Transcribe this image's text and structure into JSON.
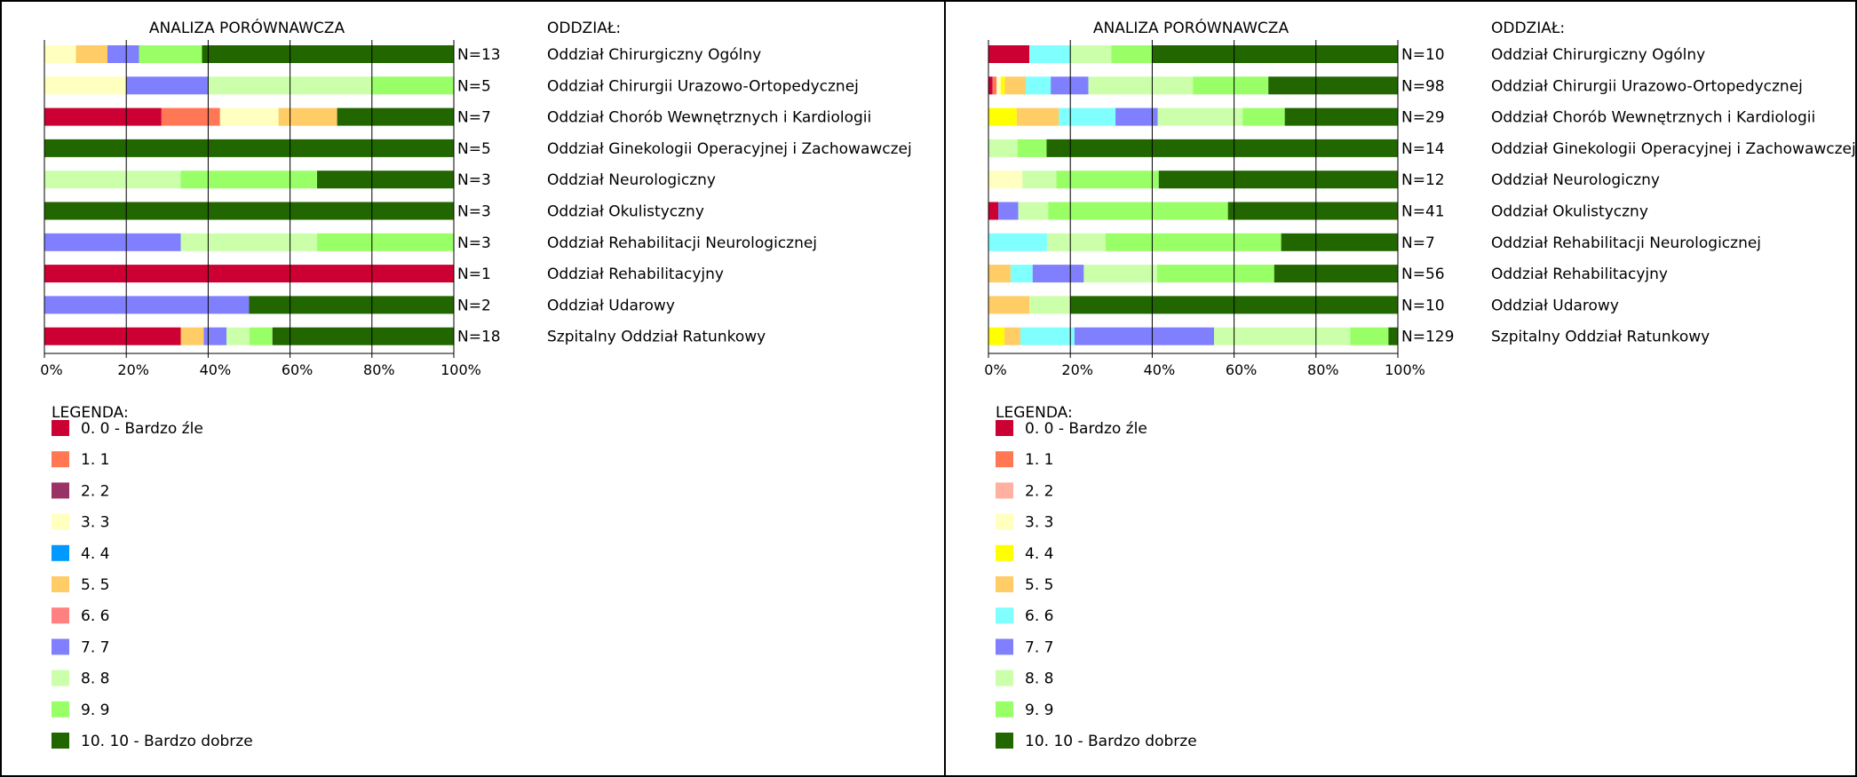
{
  "legend_title": "LEGENDA:",
  "col_header_title": "ANALIZA  PORÓWNAWCZA",
  "col_header_dept": "ODDZIAŁ:",
  "categories": [
    "0. 0 - Bardzo źle",
    "1. 1",
    "2. 2",
    "3. 3",
    "4. 4",
    "5. 5",
    "6. 6",
    "7. 7",
    "8. 8",
    "9. 9",
    "10. 10 - Bardzo dobrze"
  ],
  "chart_data": [
    {
      "type": "bar",
      "orientation": "horizontal",
      "stacked": "percent",
      "title": "ANALIZA  PORÓWNAWCZA",
      "xlim": [
        0,
        100
      ],
      "xticks": [
        "0%",
        "20%",
        "40%",
        "60%",
        "80%",
        "100%"
      ],
      "grid": true,
      "legend_position": "bottom-left",
      "colors": [
        "#cc0033",
        "#ff7755",
        "#993366",
        "#ffffc0",
        "#0099ff",
        "#ffcc66",
        "#ff8080",
        "#8080ff",
        "#ccffaa",
        "#99ff66",
        "#226600"
      ],
      "rows": [
        {
          "label": "Oddział Chirurgiczny Ogólny",
          "n": "N=13",
          "values": [
            0,
            0,
            0,
            7.7,
            0,
            7.7,
            0,
            7.7,
            0,
            15.4,
            61.5
          ]
        },
        {
          "label": "Oddział Chirurgii Urazowo-Ortopedycznej",
          "n": "N=5",
          "values": [
            0,
            0,
            0,
            20,
            0,
            0,
            0,
            20,
            40,
            20,
            0
          ]
        },
        {
          "label": "Oddział Chorób Wewnętrznych i Kardiologii",
          "n": "N=7",
          "values": [
            28.6,
            14.3,
            0,
            14.3,
            0,
            14.3,
            0,
            0,
            0,
            0,
            28.5
          ]
        },
        {
          "label": "Oddział Ginekologii Operacyjnej i Zachowawczej",
          "n": "N=5",
          "values": [
            0,
            0,
            0,
            0,
            0,
            0,
            0,
            0,
            0,
            0,
            100
          ]
        },
        {
          "label": "Oddział Neurologiczny",
          "n": "N=3",
          "values": [
            0,
            0,
            0,
            0,
            0,
            0,
            0,
            0,
            33.3,
            33.3,
            33.4
          ]
        },
        {
          "label": "Oddział Okulistyczny",
          "n": "N=3",
          "values": [
            0,
            0,
            0,
            0,
            0,
            0,
            0,
            0,
            0,
            0,
            100
          ]
        },
        {
          "label": "Oddział Rehabilitacji Neurologicznej",
          "n": "N=3",
          "values": [
            0,
            0,
            0,
            0,
            0,
            0,
            0,
            33.3,
            33.3,
            33.4,
            0
          ]
        },
        {
          "label": "Oddział Rehabilitacyjny",
          "n": "N=1",
          "values": [
            100,
            0,
            0,
            0,
            0,
            0,
            0,
            0,
            0,
            0,
            0
          ]
        },
        {
          "label": "Oddział Udarowy",
          "n": "N=2",
          "values": [
            0,
            0,
            0,
            0,
            0,
            0,
            0,
            50,
            0,
            0,
            50
          ]
        },
        {
          "label": "Szpitalny Oddział Ratunkowy",
          "n": "N=18",
          "values": [
            33.3,
            0,
            0,
            0,
            0,
            5.6,
            0,
            5.6,
            5.6,
            5.6,
            44.3
          ]
        }
      ]
    },
    {
      "type": "bar",
      "orientation": "horizontal",
      "stacked": "percent",
      "title": "ANALIZA  PORÓWNAWCZA",
      "xlim": [
        0,
        100
      ],
      "xticks": [
        "0%",
        "20%",
        "40%",
        "60%",
        "80%",
        "100%"
      ],
      "grid": true,
      "legend_position": "bottom-left",
      "colors": [
        "#cc0033",
        "#ff7755",
        "#ffb0a0",
        "#ffffc0",
        "#ffff00",
        "#ffcc66",
        "#80ffff",
        "#8080ff",
        "#ccffaa",
        "#99ff66",
        "#226600"
      ],
      "rows": [
        {
          "label": "Oddział Chirurgiczny Ogólny",
          "n": "N=10",
          "values": [
            10,
            0,
            0,
            0,
            0,
            0,
            10,
            0,
            10,
            10,
            60
          ]
        },
        {
          "label": "Oddział Chirurgii Urazowo-Ortopedycznej",
          "n": "N=98",
          "values": [
            1,
            1,
            0,
            1,
            1,
            5.1,
            6.1,
            9.2,
            25.5,
            18.4,
            31.6
          ]
        },
        {
          "label": "Oddział Chorób Wewnętrznych i Kardiologii",
          "n": "N=29",
          "values": [
            0,
            0,
            0,
            0,
            6.9,
            10.3,
            13.8,
            10.3,
            20.7,
            10.3,
            27.6
          ]
        },
        {
          "label": "Oddział Ginekologii Operacyjnej i Zachowawczej",
          "n": "N=14",
          "values": [
            0,
            0,
            0,
            0,
            0,
            0,
            0,
            0,
            7.1,
            7.1,
            85.8
          ]
        },
        {
          "label": "Oddział Neurologiczny",
          "n": "N=12",
          "values": [
            0,
            0,
            0,
            8.3,
            0,
            0,
            0,
            0,
            8.3,
            25,
            58.4
          ]
        },
        {
          "label": "Oddział Okulistyczny",
          "n": "N=41",
          "values": [
            2.4,
            0,
            0,
            0,
            0,
            0,
            0,
            4.9,
            7.3,
            43.9,
            41.5
          ]
        },
        {
          "label": "Oddział Rehabilitacji Neurologicznej",
          "n": "N=7",
          "values": [
            0,
            0,
            0,
            0,
            0,
            0,
            14.3,
            0,
            14.3,
            42.9,
            28.5
          ]
        },
        {
          "label": "Oddział Rehabilitacyjny",
          "n": "N=56",
          "values": [
            0,
            0,
            0,
            0,
            0,
            5.4,
            5.4,
            12.5,
            17.9,
            28.6,
            30.2
          ]
        },
        {
          "label": "Oddział Udarowy",
          "n": "N=10",
          "values": [
            0,
            0,
            0,
            0,
            0,
            10,
            0,
            0,
            10,
            0,
            80
          ]
        },
        {
          "label": "Szpitalny Oddział Ratunkowy",
          "n": "N=129",
          "values": [
            0,
            0,
            0,
            0,
            3.9,
            3.9,
            13.2,
            34.1,
            33.3,
            9.3,
            2.3
          ]
        }
      ]
    }
  ]
}
